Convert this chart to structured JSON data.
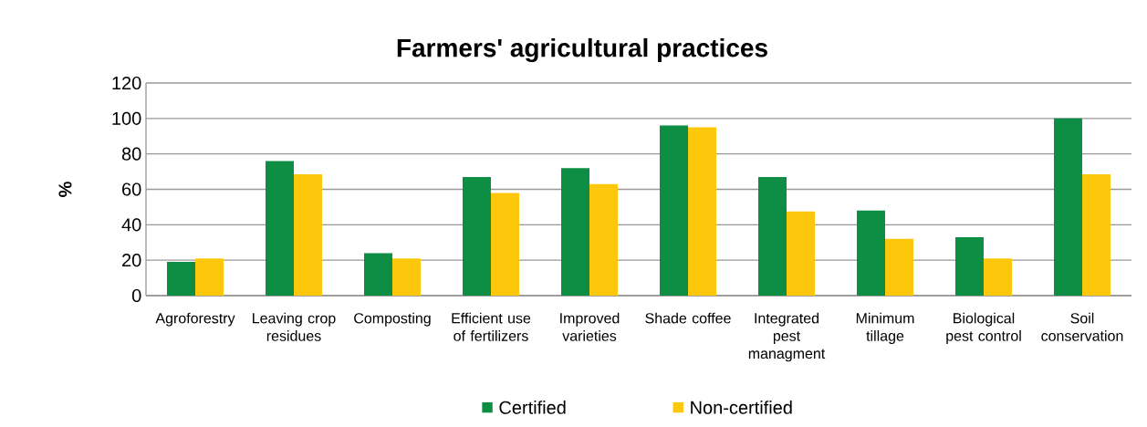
{
  "chart_data": {
    "type": "bar",
    "title": "Farmers' agricultural practices",
    "ylabel": "%",
    "categories": [
      "Agroforestry",
      "Leaving crop residues",
      "Composting",
      "Efficient use of fertilizers",
      "Improved varieties",
      "Shade coffee",
      "Integrated pest managment",
      "Minimum tillage",
      "Biological pest control",
      "Soil conservation"
    ],
    "series": [
      {
        "name": "Certified",
        "color": "#0e8e44",
        "values": [
          19,
          76,
          24,
          67,
          72,
          96,
          67,
          48,
          33,
          100
        ]
      },
      {
        "name": "Non-certified",
        "color": "#fdc70c",
        "values": [
          21,
          68.5,
          21,
          58,
          63,
          95,
          47.5,
          32,
          21,
          68.5
        ]
      }
    ],
    "ylim": [
      0,
      120
    ],
    "yticks": [
      0,
      20,
      40,
      60,
      80,
      100,
      120
    ],
    "grid": "y",
    "legend": "bottom"
  }
}
